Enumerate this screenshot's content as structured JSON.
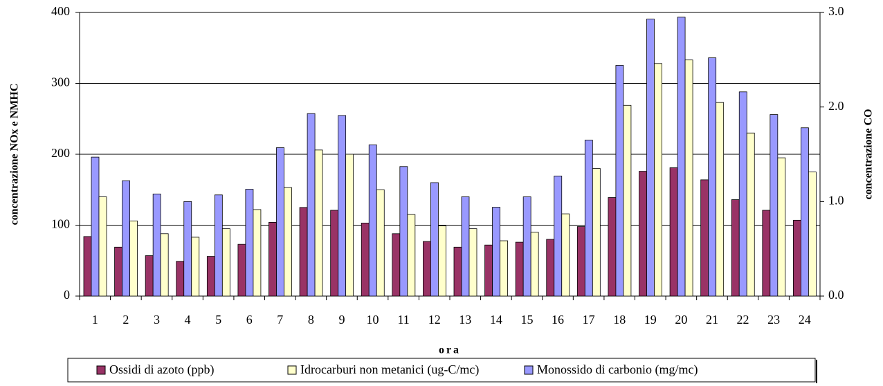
{
  "chart_data": {
    "type": "bar",
    "x_label": "ora",
    "y_label": "concentrazione NOx e NMHC",
    "y2_label": "concentrazione CO",
    "categories": [
      "1",
      "2",
      "3",
      "4",
      "5",
      "6",
      "7",
      "8",
      "9",
      "10",
      "11",
      "12",
      "13",
      "14",
      "15",
      "16",
      "17",
      "18",
      "19",
      "20",
      "21",
      "22",
      "23",
      "24"
    ],
    "series": [
      {
        "name": "Ossidi di azoto (ppb)",
        "color": "#993366",
        "values": [
          84,
          69,
          57,
          49,
          56,
          73,
          104,
          125,
          121,
          103,
          88,
          77,
          69,
          72,
          76,
          80,
          98,
          139,
          176,
          181,
          164,
          136,
          121,
          107
        ]
      },
      {
        "name": "Idrocarburi non metanici (ug-C/mc)",
        "color": "#ffffcc",
        "values": [
          140,
          106,
          88,
          83,
          95,
          122,
          153,
          206,
          200,
          150,
          115,
          99,
          95,
          78,
          90,
          116,
          180,
          269,
          328,
          333,
          273,
          230,
          195,
          175
        ]
      },
      {
        "name": "Monossido di carbonio (mg/mc)",
        "color": "#9999ff",
        "axis": "y2",
        "values": [
          1.47,
          1.22,
          1.08,
          1.0,
          1.07,
          1.13,
          1.57,
          1.93,
          1.91,
          1.6,
          1.37,
          1.2,
          1.05,
          0.94,
          1.05,
          1.27,
          1.65,
          2.44,
          2.93,
          2.95,
          2.52,
          2.16,
          1.92,
          1.78
        ]
      }
    ],
    "ylim": [
      0,
      400
    ],
    "yticks": [
      0,
      100,
      200,
      300,
      400
    ],
    "y2lim": [
      0,
      3
    ],
    "y2ticks": [
      {
        "value": 0,
        "label": "0.0"
      },
      {
        "value": 1,
        "label": "1.0"
      },
      {
        "value": 2,
        "label": "2.0"
      },
      {
        "value": 3,
        "label": "3.0"
      }
    ],
    "grid": true,
    "legend": "bottom"
  }
}
